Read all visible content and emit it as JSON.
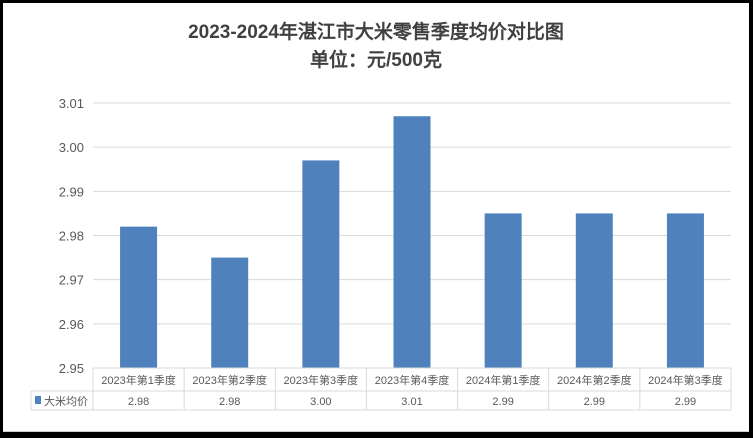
{
  "chart_data": {
    "type": "bar",
    "title": "2023-2024年湛江市大米零售季度均价对比图",
    "subtitle": "单位：元/500克",
    "categories": [
      "2023年第1季度",
      "2023年第2季度",
      "2023年第3季度",
      "2023年第4季度",
      "2024年第1季度",
      "2024年第2季度",
      "2024年第3季度"
    ],
    "series": [
      {
        "name": "大米均价",
        "values": [
          2.982,
          2.975,
          2.997,
          3.007,
          2.985,
          2.985,
          2.985
        ],
        "table_labels": [
          "2.98",
          "2.98",
          "3.00",
          "3.01",
          "2.99",
          "2.99",
          "2.99"
        ]
      }
    ],
    "ylim": [
      2.95,
      3.01
    ],
    "yticks": [
      "2.95",
      "2.96",
      "2.97",
      "2.98",
      "2.99",
      "3.00",
      "3.01"
    ],
    "grid": true,
    "legend": "data-table",
    "bar_color": "#4f81bd"
  }
}
